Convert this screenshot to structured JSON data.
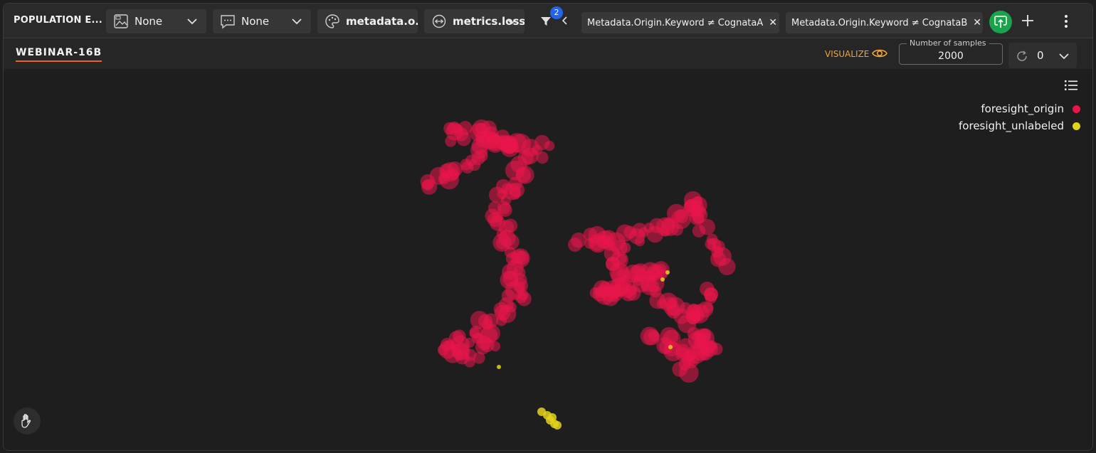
{
  "header": {
    "title": "POPULATION E...",
    "dropdowns": [
      {
        "icon": "image-icon",
        "label": "None"
      },
      {
        "icon": "comment-icon",
        "label": "None"
      },
      {
        "icon": "palette-icon",
        "label": "metadata.o..."
      },
      {
        "icon": "size-icon",
        "label": "metrics.loss"
      }
    ],
    "filter_count": "2",
    "chips": [
      {
        "label": "Metadata.Origin.Keyword ≠ CognataA"
      },
      {
        "label": "Metadata.Origin.Keyword ≠ CognataB"
      }
    ]
  },
  "subbar": {
    "tab": "WEBINAR-16B",
    "visualize_label": "VISUALIZE",
    "samples_legend": "Number of samples",
    "samples_value": "2000",
    "reset_value": "0"
  },
  "legend": {
    "items": [
      {
        "label": "foresight_origin",
        "color": "#e8154a"
      },
      {
        "label": "foresight_unlabeled",
        "color": "#e3d21c"
      }
    ]
  },
  "chart_data": {
    "type": "scatter",
    "series": [
      {
        "name": "foresight_origin",
        "color": "#e8154a",
        "clusters": [
          {
            "path": [
              [
                600,
                258
              ],
              [
                640,
                242
              ],
              [
                665,
                225
              ],
              [
                675,
                200
              ],
              [
                700,
                195
              ],
              [
                720,
                205
              ],
              [
                745,
                215
              ],
              [
                770,
                210
              ]
            ]
          },
          {
            "path": [
              [
                625,
                190
              ],
              [
                650,
                188
              ],
              [
                690,
                190
              ],
              [
                715,
                192
              ]
            ]
          },
          {
            "path": [
              [
                730,
                230
              ],
              [
                720,
                260
              ],
              [
                700,
                280
              ],
              [
                700,
                310
              ],
              [
                715,
                340
              ],
              [
                725,
                360
              ],
              [
                720,
                390
              ],
              [
                730,
                410
              ],
              [
                715,
                430
              ],
              [
                700,
                450
              ],
              [
                670,
                465
              ],
              [
                650,
                480
              ],
              [
                630,
                495
              ],
              [
                660,
                500
              ],
              [
                690,
                490
              ]
            ]
          },
          {
            "path": [
              [
                812,
                338
              ],
              [
                840,
                332
              ],
              [
                870,
                345
              ],
              [
                900,
                330
              ],
              [
                930,
                320
              ],
              [
                960,
                300
              ],
              [
                975,
                280
              ],
              [
                985,
                310
              ],
              [
                1000,
                345
              ],
              [
                1015,
                365
              ]
            ]
          },
          {
            "path": [
              [
                930,
                370
              ],
              [
                905,
                395
              ],
              [
                880,
                410
              ],
              [
                860,
                420
              ],
              [
                840,
                410
              ],
              [
                870,
                395
              ]
            ]
          },
          {
            "path": [
              [
                910,
                475
              ],
              [
                935,
                480
              ],
              [
                960,
                490
              ],
              [
                980,
                500
              ],
              [
                1000,
                490
              ],
              [
                980,
                470
              ],
              [
                965,
                520
              ]
            ]
          },
          {
            "path": [
              [
                998,
                413
              ],
              [
                973,
                445
              ],
              [
                860,
                370
              ]
            ]
          }
        ]
      },
      {
        "name": "foresight_unlabeled",
        "color": "#e3d21c",
        "points": [
          [
            700,
            515
          ],
          [
            930,
            392
          ],
          [
            937,
            382
          ],
          [
            941,
            487
          ],
          [
            760,
            578
          ],
          [
            768,
            583
          ],
          [
            772,
            590
          ],
          [
            778,
            595
          ],
          [
            782,
            597
          ],
          [
            775,
            586
          ]
        ]
      }
    ]
  }
}
